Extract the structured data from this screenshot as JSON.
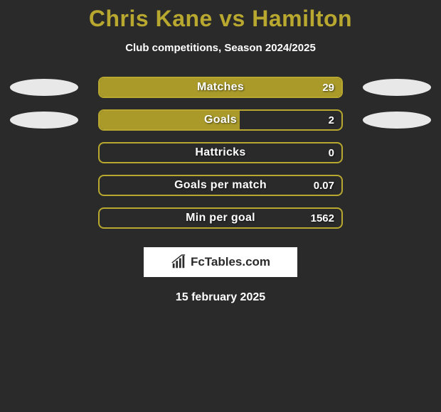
{
  "title_color": "#b8a82f",
  "title": "Chris Kane vs Hamilton",
  "subtitle": "Club competitions, Season 2024/2025",
  "bar_border_color": "#b8a82f",
  "bar_fill_color": "#a99a2a",
  "ellipse_color": "#e8e8e8",
  "background_color": "#2a2a2a",
  "stats": [
    {
      "label": "Matches",
      "value": "29",
      "fill_pct": 100,
      "left_ellipse": true,
      "right_ellipse": true
    },
    {
      "label": "Goals",
      "value": "2",
      "fill_pct": 58,
      "left_ellipse": true,
      "right_ellipse": true
    },
    {
      "label": "Hattricks",
      "value": "0",
      "fill_pct": 0,
      "left_ellipse": false,
      "right_ellipse": false
    },
    {
      "label": "Goals per match",
      "value": "0.07",
      "fill_pct": 0,
      "left_ellipse": false,
      "right_ellipse": false
    },
    {
      "label": "Min per goal",
      "value": "1562",
      "fill_pct": 0,
      "left_ellipse": false,
      "right_ellipse": false
    }
  ],
  "brand": "FcTables.com",
  "date": "15 february 2025"
}
